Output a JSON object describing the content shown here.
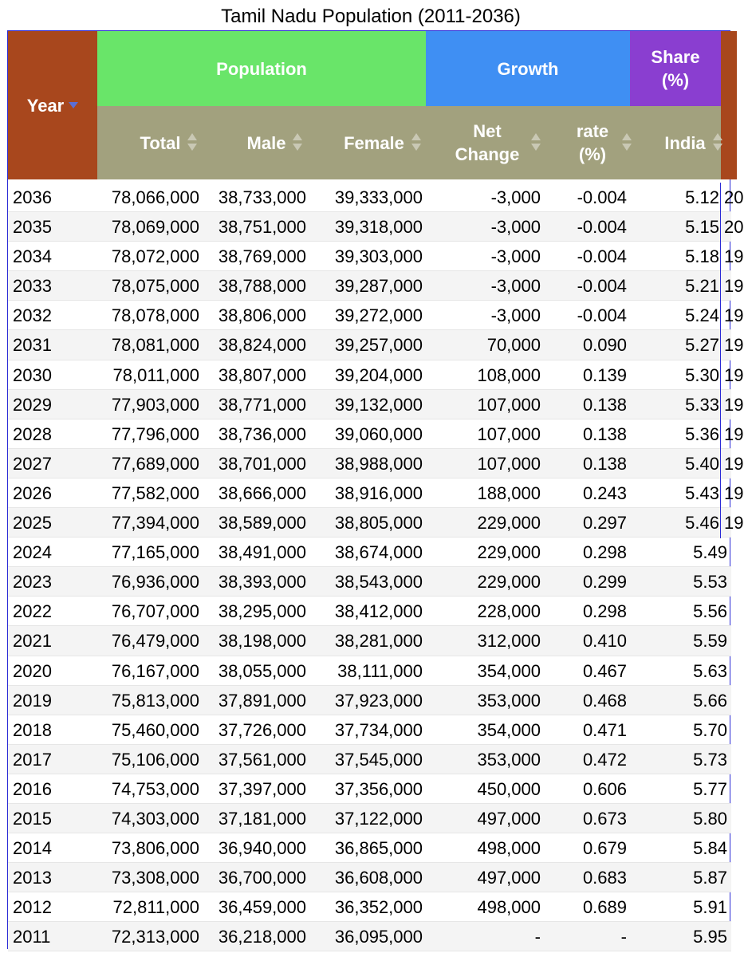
{
  "title": "Tamil Nadu Population (2011-2036)",
  "headers": {
    "year": "Year",
    "population": "Population",
    "growth": "Growth",
    "share": "Share (%)",
    "total": "Total",
    "male": "Male",
    "female": "Female",
    "net_change": "Net Change",
    "rate": "rate (%)",
    "india": "India"
  },
  "colors": {
    "year_header": "#a8471d",
    "population_header": "#69e569",
    "growth_header": "#3f8ff3",
    "share_header": "#8a3ed0",
    "subheader": "#a2a17e",
    "border": "#2b2bd6"
  },
  "icons": {
    "sort_descending": "sort-descending-icon",
    "sort_both": "sort-icon"
  },
  "rows": [
    {
      "year": "2036",
      "total": "78,066,000",
      "male": "38,733,000",
      "female": "39,333,000",
      "net": "-3,000",
      "rate": "-0.004",
      "share": "5.12",
      "extra": "20"
    },
    {
      "year": "2035",
      "total": "78,069,000",
      "male": "38,751,000",
      "female": "39,318,000",
      "net": "-3,000",
      "rate": "-0.004",
      "share": "5.15",
      "extra": "20"
    },
    {
      "year": "2034",
      "total": "78,072,000",
      "male": "38,769,000",
      "female": "39,303,000",
      "net": "-3,000",
      "rate": "-0.004",
      "share": "5.18",
      "extra": "19"
    },
    {
      "year": "2033",
      "total": "78,075,000",
      "male": "38,788,000",
      "female": "39,287,000",
      "net": "-3,000",
      "rate": "-0.004",
      "share": "5.21",
      "extra": "19"
    },
    {
      "year": "2032",
      "total": "78,078,000",
      "male": "38,806,000",
      "female": "39,272,000",
      "net": "-3,000",
      "rate": "-0.004",
      "share": "5.24",
      "extra": "19"
    },
    {
      "year": "2031",
      "total": "78,081,000",
      "male": "38,824,000",
      "female": "39,257,000",
      "net": "70,000",
      "rate": "0.090",
      "share": "5.27",
      "extra": "19"
    },
    {
      "year": "2030",
      "total": "78,011,000",
      "male": "38,807,000",
      "female": "39,204,000",
      "net": "108,000",
      "rate": "0.139",
      "share": "5.30",
      "extra": "19"
    },
    {
      "year": "2029",
      "total": "77,903,000",
      "male": "38,771,000",
      "female": "39,132,000",
      "net": "107,000",
      "rate": "0.138",
      "share": "5.33",
      "extra": "19"
    },
    {
      "year": "2028",
      "total": "77,796,000",
      "male": "38,736,000",
      "female": "39,060,000",
      "net": "107,000",
      "rate": "0.138",
      "share": "5.36",
      "extra": "19"
    },
    {
      "year": "2027",
      "total": "77,689,000",
      "male": "38,701,000",
      "female": "38,988,000",
      "net": "107,000",
      "rate": "0.138",
      "share": "5.40",
      "extra": "19"
    },
    {
      "year": "2026",
      "total": "77,582,000",
      "male": "38,666,000",
      "female": "38,916,000",
      "net": "188,000",
      "rate": "0.243",
      "share": "5.43",
      "extra": "19"
    },
    {
      "year": "2025",
      "total": "77,394,000",
      "male": "38,589,000",
      "female": "38,805,000",
      "net": "229,000",
      "rate": "0.297",
      "share": "5.46",
      "extra": "19"
    },
    {
      "year": "2024",
      "total": "77,165,000",
      "male": "38,491,000",
      "female": "38,674,000",
      "net": "229,000",
      "rate": "0.298",
      "share": "5.49",
      "extra": ""
    },
    {
      "year": "2023",
      "total": "76,936,000",
      "male": "38,393,000",
      "female": "38,543,000",
      "net": "229,000",
      "rate": "0.299",
      "share": "5.53",
      "extra": ""
    },
    {
      "year": "2022",
      "total": "76,707,000",
      "male": "38,295,000",
      "female": "38,412,000",
      "net": "228,000",
      "rate": "0.298",
      "share": "5.56",
      "extra": ""
    },
    {
      "year": "2021",
      "total": "76,479,000",
      "male": "38,198,000",
      "female": "38,281,000",
      "net": "312,000",
      "rate": "0.410",
      "share": "5.59",
      "extra": ""
    },
    {
      "year": "2020",
      "total": "76,167,000",
      "male": "38,055,000",
      "female": "38,111,000",
      "net": "354,000",
      "rate": "0.467",
      "share": "5.63",
      "extra": ""
    },
    {
      "year": "2019",
      "total": "75,813,000",
      "male": "37,891,000",
      "female": "37,923,000",
      "net": "353,000",
      "rate": "0.468",
      "share": "5.66",
      "extra": ""
    },
    {
      "year": "2018",
      "total": "75,460,000",
      "male": "37,726,000",
      "female": "37,734,000",
      "net": "354,000",
      "rate": "0.471",
      "share": "5.70",
      "extra": ""
    },
    {
      "year": "2017",
      "total": "75,106,000",
      "male": "37,561,000",
      "female": "37,545,000",
      "net": "353,000",
      "rate": "0.472",
      "share": "5.73",
      "extra": ""
    },
    {
      "year": "2016",
      "total": "74,753,000",
      "male": "37,397,000",
      "female": "37,356,000",
      "net": "450,000",
      "rate": "0.606",
      "share": "5.77",
      "extra": ""
    },
    {
      "year": "2015",
      "total": "74,303,000",
      "male": "37,181,000",
      "female": "37,122,000",
      "net": "497,000",
      "rate": "0.673",
      "share": "5.80",
      "extra": ""
    },
    {
      "year": "2014",
      "total": "73,806,000",
      "male": "36,940,000",
      "female": "36,865,000",
      "net": "498,000",
      "rate": "0.679",
      "share": "5.84",
      "extra": ""
    },
    {
      "year": "2013",
      "total": "73,308,000",
      "male": "36,700,000",
      "female": "36,608,000",
      "net": "497,000",
      "rate": "0.683",
      "share": "5.87",
      "extra": ""
    },
    {
      "year": "2012",
      "total": "72,811,000",
      "male": "36,459,000",
      "female": "36,352,000",
      "net": "498,000",
      "rate": "0.689",
      "share": "5.91",
      "extra": ""
    },
    {
      "year": "2011",
      "total": "72,313,000",
      "male": "36,218,000",
      "female": "36,095,000",
      "net": "-",
      "rate": "-",
      "share": "5.95",
      "extra": ""
    }
  ]
}
